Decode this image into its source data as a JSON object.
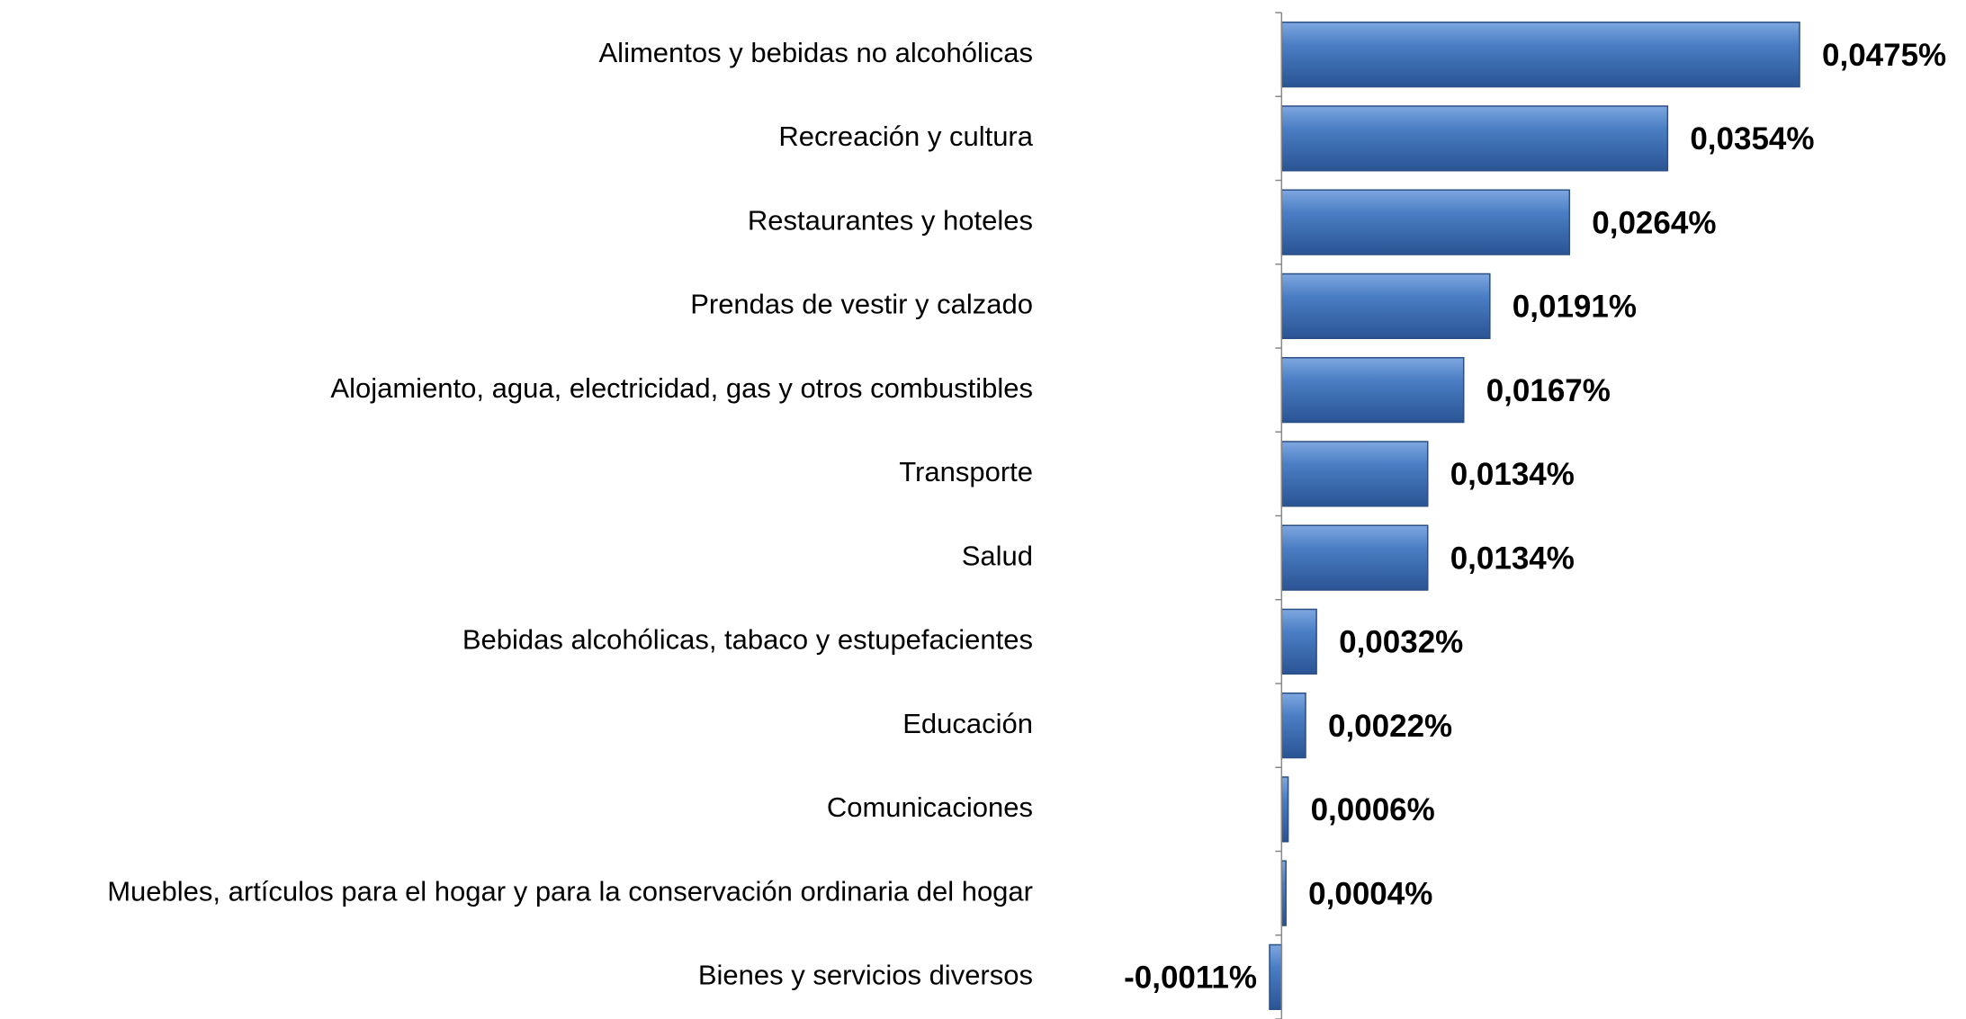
{
  "chart_data": {
    "type": "bar",
    "orientation": "horizontal",
    "categories": [
      "Alimentos y bebidas no alcohólicas",
      "Recreación y cultura",
      "Restaurantes y hoteles",
      "Prendas de vestir y calzado",
      "Alojamiento, agua, electricidad, gas y otros combustibles",
      "Transporte",
      "Salud",
      "Bebidas alcohólicas, tabaco y estupefacientes",
      "Educación",
      "Comunicaciones",
      "Muebles, artículos para el hogar y para la conservación ordinaria del hogar",
      "Bienes y servicios diversos"
    ],
    "values": [
      0.0475,
      0.0354,
      0.0264,
      0.0191,
      0.0167,
      0.0134,
      0.0134,
      0.0032,
      0.0022,
      0.0006,
      0.0004,
      -0.0011
    ],
    "value_labels": [
      "0,0475%",
      "0,0354%",
      "0,0264%",
      "0,0191%",
      "0,0167%",
      "0,0134%",
      "0,0134%",
      "0,0032%",
      "0,0022%",
      "0,0006%",
      "0,0004%",
      "-0,0011%"
    ],
    "color": "#4a7ec4"
  }
}
